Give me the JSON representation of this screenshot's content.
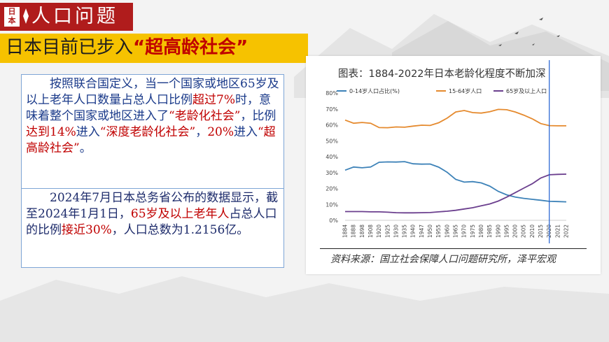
{
  "header": {
    "tag_line1": "日",
    "tag_line2": "本",
    "title": "人口问题"
  },
  "subtitle": {
    "prefix": "日本目前已步入",
    "highlight": "“超高龄社会”"
  },
  "paragraph1": {
    "parts": [
      {
        "text": "按照联合国定义，当一个国家或地区",
        "red": false
      },
      {
        "text": "65岁及以上老年人口数量占总人口比例",
        "red": false
      },
      {
        "text": "超过7%",
        "red": true
      },
      {
        "text": "时，意味着整个国家或地区进入了",
        "red": false
      },
      {
        "text": "“老龄化社会”",
        "red": true
      },
      {
        "text": "，比例",
        "red": false
      },
      {
        "text": "达到14%",
        "red": true
      },
      {
        "text": "进入",
        "red": false
      },
      {
        "text": "“深度老龄化社会”",
        "red": true
      },
      {
        "text": "，",
        "red": false
      },
      {
        "text": "20%",
        "red": true
      },
      {
        "text": "进入",
        "red": false
      },
      {
        "text": "“超高龄社会”",
        "red": true
      },
      {
        "text": "。",
        "red": false
      }
    ]
  },
  "paragraph2": {
    "parts": [
      {
        "text": "2024年7月日本总务省公布的数据显示，截至2024年1月1日，",
        "red": false
      },
      {
        "text": "65岁及以上老年人",
        "red": true
      },
      {
        "text": "占总人口的比例",
        "red": false
      },
      {
        "text": "接近30%",
        "red": true
      },
      {
        "text": "，人口总数为1.2156亿。",
        "red": false
      }
    ]
  },
  "chart_data": {
    "type": "line",
    "title": "图表：1884-2022年日本老龄化程度不断加深",
    "source": "资料来源：国立社会保障人口问题研究所，泽平宏观",
    "x": [
      "1884",
      "1888",
      "1898",
      "1908",
      "1920",
      "1925",
      "1930",
      "1935",
      "1940",
      "1947",
      "1950",
      "1955",
      "1960",
      "1965",
      "1970",
      "1975",
      "1980",
      "1985",
      "1990",
      "1995",
      "2000",
      "2005",
      "2010",
      "2015",
      "2020",
      "2021",
      "2022"
    ],
    "ylim": [
      0,
      80
    ],
    "yticks": [
      "0%",
      "10%",
      "20%",
      "30%",
      "40%",
      "50%",
      "60%",
      "70%",
      "80%"
    ],
    "legend_position": "top",
    "series": [
      {
        "name": "0-14岁人口占比(%)",
        "color": "#3d82b8",
        "values": [
          31.5,
          33.5,
          33.0,
          33.5,
          36.5,
          36.7,
          36.6,
          36.9,
          35.5,
          35.3,
          35.4,
          33.4,
          30.2,
          25.7,
          24.0,
          24.3,
          23.5,
          21.5,
          18.2,
          16.0,
          14.6,
          13.8,
          13.2,
          12.6,
          11.9,
          11.8,
          11.6
        ]
      },
      {
        "name": "15-64岁人口",
        "color": "#e58a2e",
        "values": [
          63.0,
          61.0,
          61.5,
          61.0,
          58.3,
          58.2,
          58.7,
          58.5,
          59.2,
          59.8,
          59.6,
          61.3,
          64.2,
          68.1,
          69.0,
          67.7,
          67.4,
          68.2,
          69.7,
          69.5,
          68.1,
          66.1,
          63.8,
          60.8,
          59.5,
          59.4,
          59.4
        ]
      },
      {
        "name": "65岁及以上人口",
        "color": "#6b3f8e",
        "values": [
          5.5,
          5.5,
          5.5,
          5.3,
          5.3,
          5.1,
          4.8,
          4.7,
          4.7,
          4.8,
          4.9,
          5.3,
          5.7,
          6.3,
          7.1,
          7.9,
          9.1,
          10.3,
          12.1,
          14.6,
          17.4,
          20.2,
          23.0,
          26.6,
          28.6,
          28.9,
          29.0
        ]
      }
    ],
    "marker_x": "2020",
    "marker_color": "#1f5fd1",
    "grid": false
  }
}
